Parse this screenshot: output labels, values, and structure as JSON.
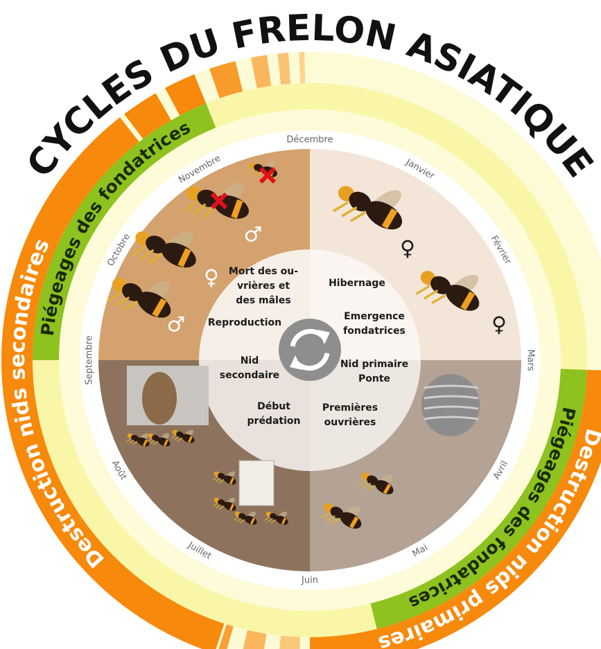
{
  "title": "CYCLES DU FRELON ASIATIQUE",
  "months": [
    "Décembre",
    "Janvier",
    "Février",
    "Mars",
    "Avril",
    "Mai",
    "Juin",
    "Juillet",
    "Août",
    "Septembre",
    "Octobre",
    "Novembre"
  ],
  "bands": {
    "trapping_autumn": "Piégeages des fondatrices",
    "trapping_spring": "Piégeages des fondatrices",
    "destruction_secondary": "Destruction nids secondaires",
    "destruction_primary": "Destruction nids primaires"
  },
  "phases": [
    {
      "lines": [
        "Mort des ou-",
        "vrières et",
        "des mâles"
      ]
    },
    {
      "lines": [
        "Reproduction"
      ]
    },
    {
      "lines": [
        "Hibernage"
      ]
    },
    {
      "lines": [
        "Emergence",
        "fondatrices"
      ]
    },
    {
      "lines": [
        "Nid",
        "secondaire"
      ]
    },
    {
      "lines": [
        "Début",
        "prédation"
      ]
    },
    {
      "lines": [
        "Nid primaire",
        "Ponte"
      ]
    },
    {
      "lines": [
        "Premières",
        "ouvrières"
      ]
    }
  ],
  "symbols": [
    "♂",
    "♀",
    "♂",
    "♀",
    "♀"
  ]
}
